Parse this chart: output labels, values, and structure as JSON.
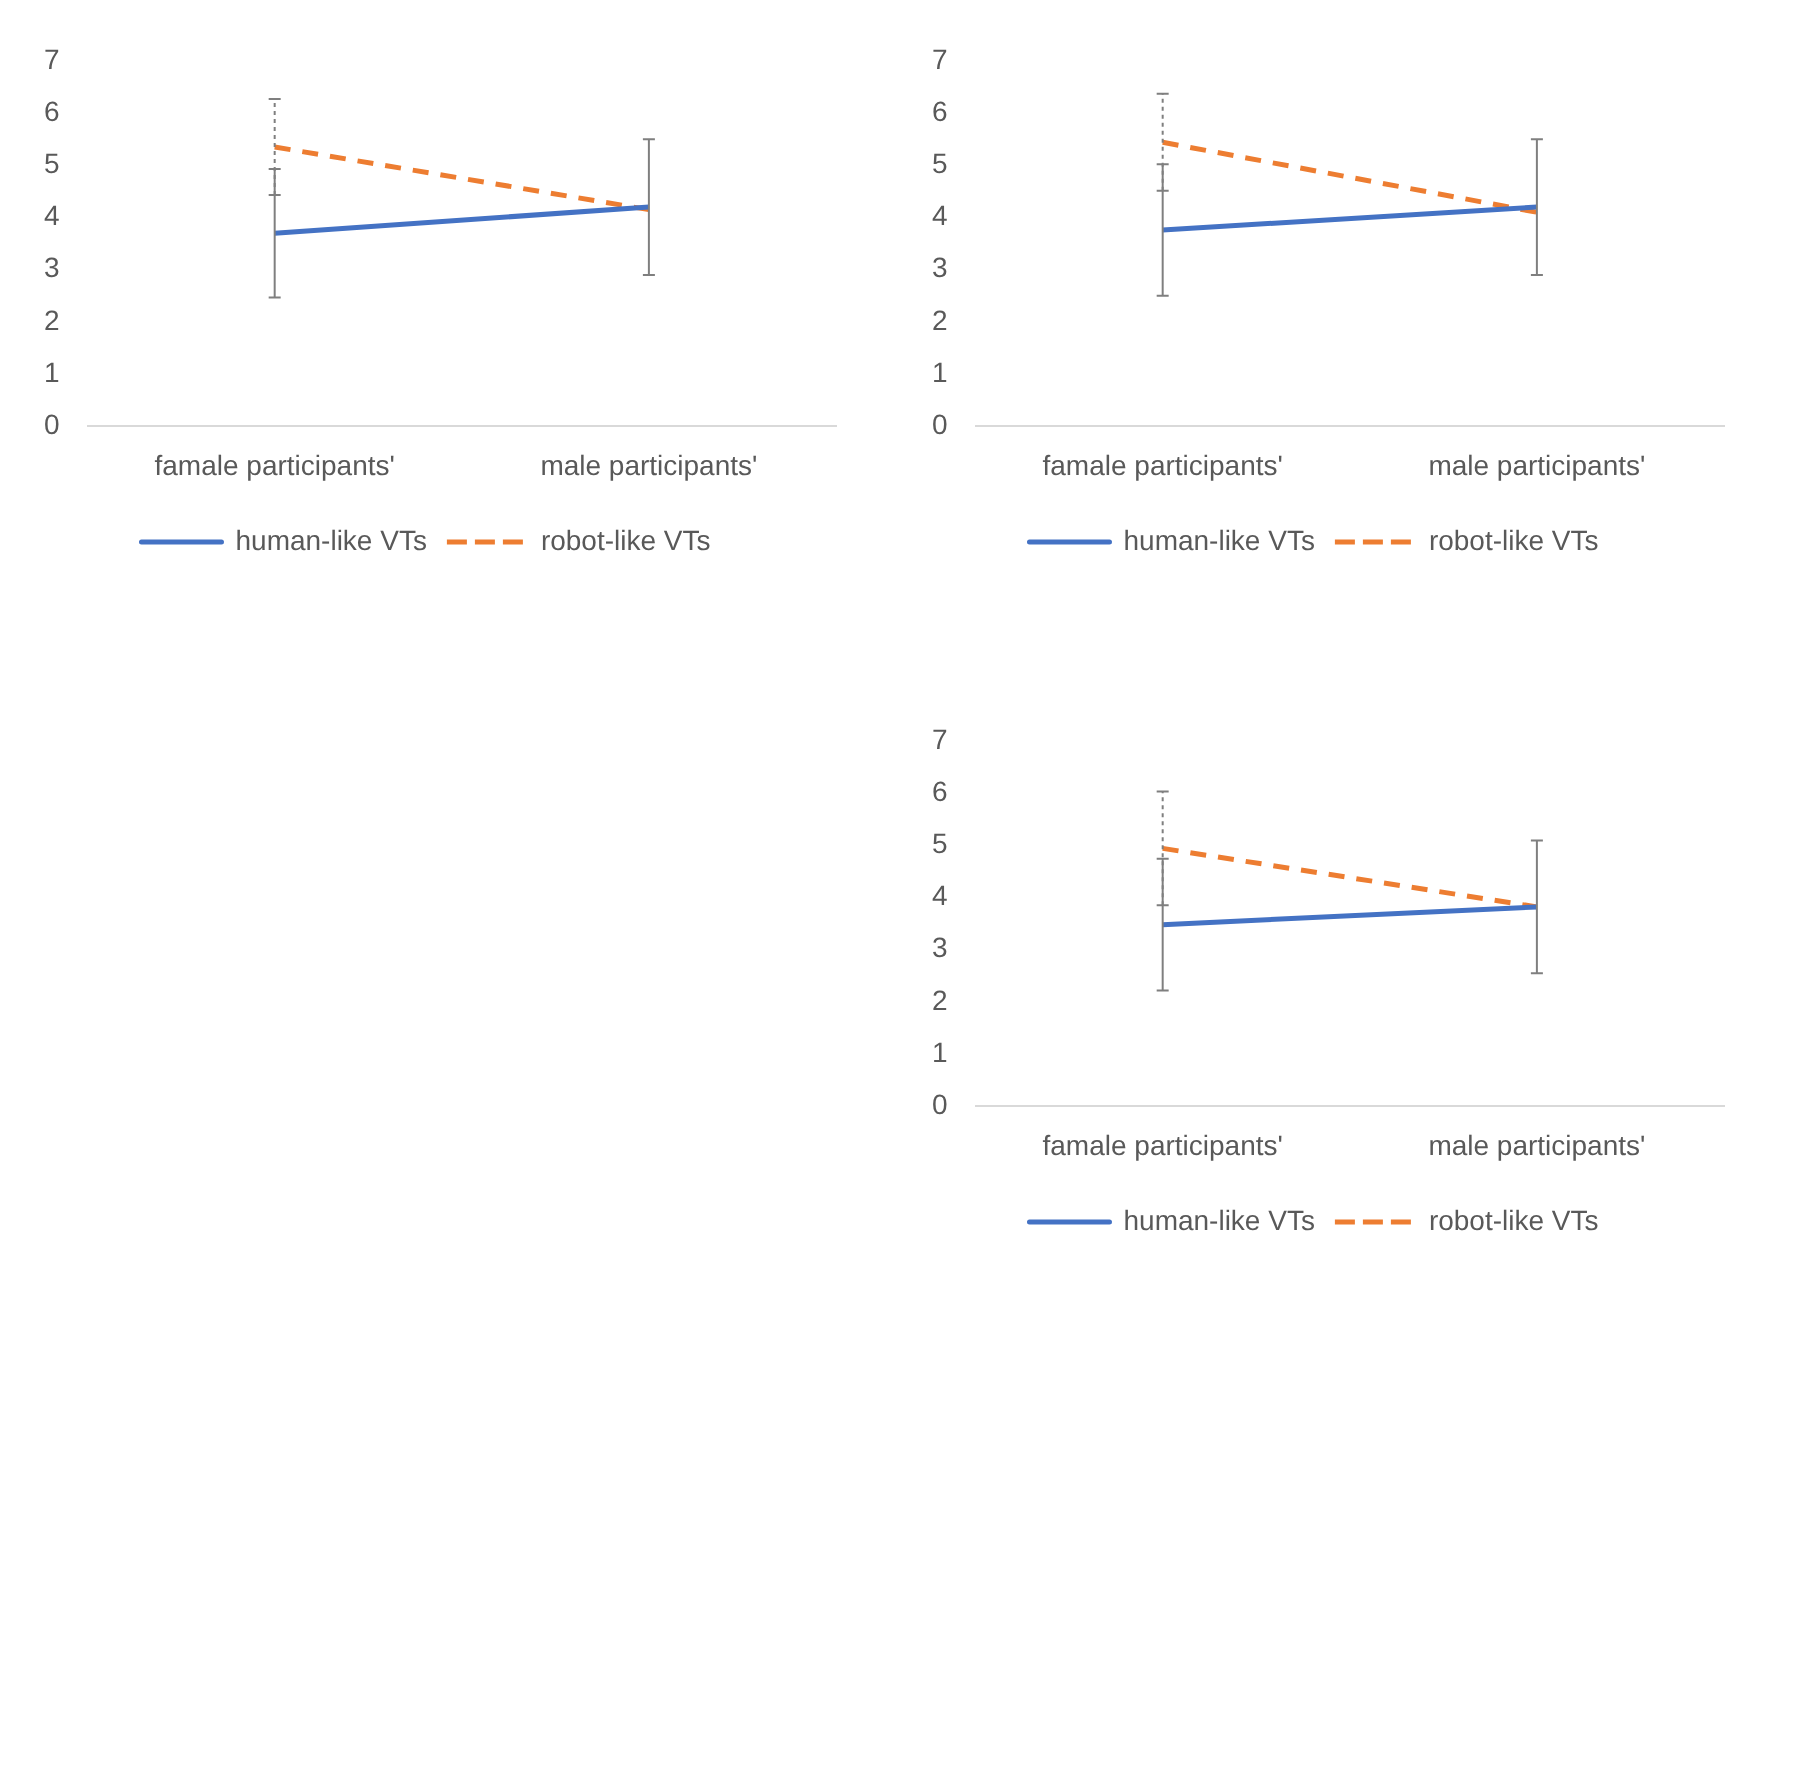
{
  "chart_data": [
    {
      "type": "line",
      "categories": [
        "famale participants'",
        "male participants'"
      ],
      "ylim": [
        0,
        7
      ],
      "yticks": [
        0,
        1,
        2,
        3,
        4,
        5,
        6,
        7
      ],
      "grid": false,
      "legend": "bottom",
      "marker": "none",
      "series": [
        {
          "name": "human-like VTs",
          "color": "#4472c4",
          "values": [
            3.7,
            4.2
          ],
          "errors": [
            1.23,
            1.3
          ],
          "line_style": "solid"
        },
        {
          "name": "robot-like VTs",
          "color": "#ed7d31",
          "values": [
            5.35,
            4.15
          ],
          "errors": [
            0.92,
            null
          ],
          "line_style": "dashed"
        }
      ]
    },
    {
      "type": "line",
      "categories": [
        "famale participants'",
        "male participants'"
      ],
      "ylim": [
        0,
        7
      ],
      "yticks": [
        0,
        1,
        2,
        3,
        4,
        5,
        6,
        7
      ],
      "grid": false,
      "legend": "bottom",
      "marker": "none",
      "series": [
        {
          "name": "human-like VTs",
          "color": "#4472c4",
          "values": [
            3.76,
            4.2
          ],
          "errors": [
            1.26,
            1.3
          ],
          "line_style": "solid"
        },
        {
          "name": "robot-like VTs",
          "color": "#ed7d31",
          "values": [
            5.44,
            4.1
          ],
          "errors": [
            0.93,
            null
          ],
          "line_style": "dashed"
        }
      ]
    },
    {
      "type": "line",
      "categories": [
        "famale participants'",
        "male participants'"
      ],
      "ylim": [
        0,
        7
      ],
      "yticks": [
        0,
        1,
        2,
        3,
        4,
        5,
        6,
        7
      ],
      "grid": false,
      "legend": "bottom",
      "marker": "none",
      "series": [
        {
          "name": "human-like VTs",
          "color": "#4472c4",
          "values": [
            3.48,
            3.82
          ],
          "errors": [
            1.26,
            1.27
          ],
          "line_style": "solid"
        },
        {
          "name": "robot-like VTs",
          "color": "#ed7d31",
          "values": [
            4.94,
            3.82
          ],
          "errors": [
            1.09,
            null
          ],
          "line_style": "dashed"
        }
      ]
    }
  ]
}
